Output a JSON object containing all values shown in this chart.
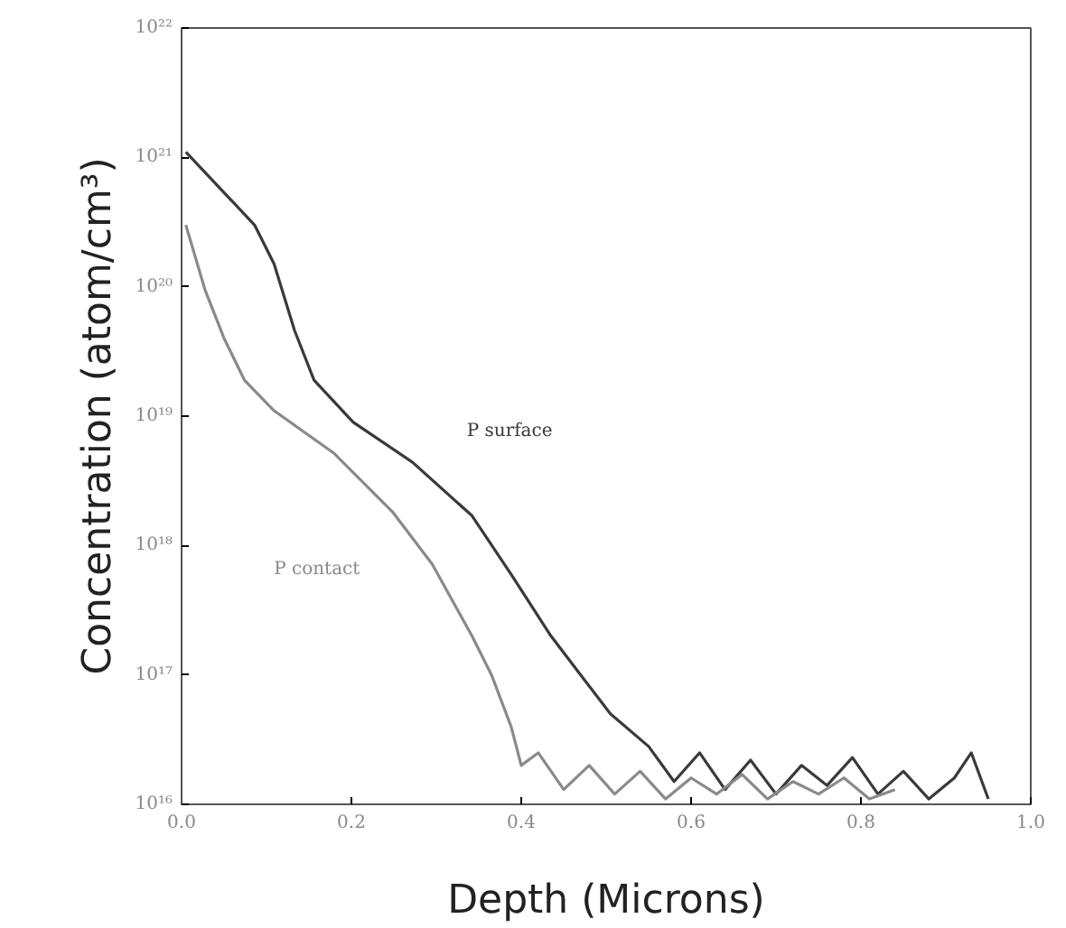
{
  "chart_data": {
    "type": "line",
    "xlabel": "Depth (Microns)",
    "ylabel": "Concentration (atom/cm³)",
    "log": "y",
    "grid": false,
    "marker": "none",
    "line_style": "solid",
    "xlim": [
      0.0,
      1.0
    ],
    "ylim": [
      1e+16,
      1e+22
    ],
    "xticks": [
      {
        "value": 0.0,
        "label": "0.0"
      },
      0.2,
      0.4,
      0.6,
      0.8,
      {
        "value": 1.0,
        "label": "1.0"
      }
    ],
    "yticks": [
      {
        "value": 1e+16,
        "label": "10¹⁶"
      },
      {
        "value": 1e+17,
        "label": "10¹⁷"
      },
      {
        "value": 1e+18,
        "label": "10¹⁸"
      },
      {
        "value": 1e+19,
        "label": "10¹⁹"
      },
      {
        "value": 1e+20,
        "label": "10²⁰"
      },
      {
        "value": 1e+21,
        "label": "10²¹"
      },
      {
        "value": 1e+22,
        "label": "10²²"
      }
    ],
    "series": [
      {
        "name": "P surface",
        "color": "#3a3a3a",
        "x": [
          0.005,
          0.086,
          0.109,
          0.133,
          0.156,
          0.202,
          0.272,
          0.342,
          0.388,
          0.435,
          0.47,
          0.505,
          0.55,
          0.58,
          0.61,
          0.64,
          0.67,
          0.7,
          0.73,
          0.76,
          0.79,
          0.82,
          0.85,
          0.88,
          0.91,
          0.93,
          0.95
        ],
        "values": [
          1.1e+21,
          3e+20,
          1.5e+20,
          4.6e+19,
          1.9e+19,
          9e+18,
          4.4e+18,
          1.7e+18,
          6e+17,
          2e+17,
          1e+17,
          5e+16,
          2.8e+16,
          1.5e+16,
          2.5e+16,
          1.3e+16,
          2.2e+16,
          1.2e+16,
          2e+16,
          1.4e+16,
          2.3e+16,
          1.2e+16,
          1.8e+16,
          1.1e+16,
          1.6e+16,
          2.5e+16,
          1.1e+16
        ]
      },
      {
        "name": "P contact",
        "color": "#8a8a8a",
        "x": [
          0.005,
          0.028,
          0.05,
          0.074,
          0.109,
          0.179,
          0.249,
          0.295,
          0.342,
          0.365,
          0.388,
          0.4,
          0.42,
          0.45,
          0.48,
          0.51,
          0.54,
          0.57,
          0.6,
          0.63,
          0.66,
          0.69,
          0.72,
          0.75,
          0.78,
          0.81,
          0.84
        ],
        "values": [
          3e+20,
          9.3e+19,
          4e+19,
          1.9e+19,
          1.1e+19,
          5.2e+18,
          1.8e+18,
          7.2e+17,
          2e+17,
          1e+17,
          4e+16,
          2e+16,
          2.5e+16,
          1.3e+16,
          2e+16,
          1.2e+16,
          1.8e+16,
          1.1e+16,
          1.6e+16,
          1.2e+16,
          1.7e+16,
          1.1e+16,
          1.5e+16,
          1.2e+16,
          1.6e+16,
          1.1e+16,
          1.3e+16
        ]
      }
    ]
  }
}
